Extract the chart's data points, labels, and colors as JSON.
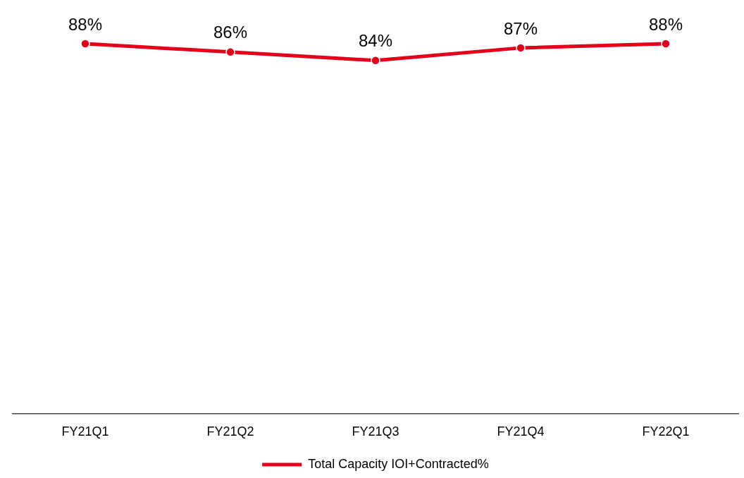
{
  "chart_data": {
    "type": "line",
    "categories": [
      "FY21Q1",
      "FY21Q2",
      "FY21Q3",
      "FY21Q4",
      "FY22Q1"
    ],
    "series": [
      {
        "name": "Total Capacity IOI+Contracted%",
        "color": "#e3001b",
        "values": [
          88,
          86,
          84,
          87,
          88
        ],
        "value_labels": [
          "88%",
          "86%",
          "84%",
          "87%",
          "88%"
        ]
      }
    ],
    "tick_labels": "x",
    "grid": false,
    "legend": "bottom",
    "marker": "circle",
    "line_style": "solid"
  }
}
